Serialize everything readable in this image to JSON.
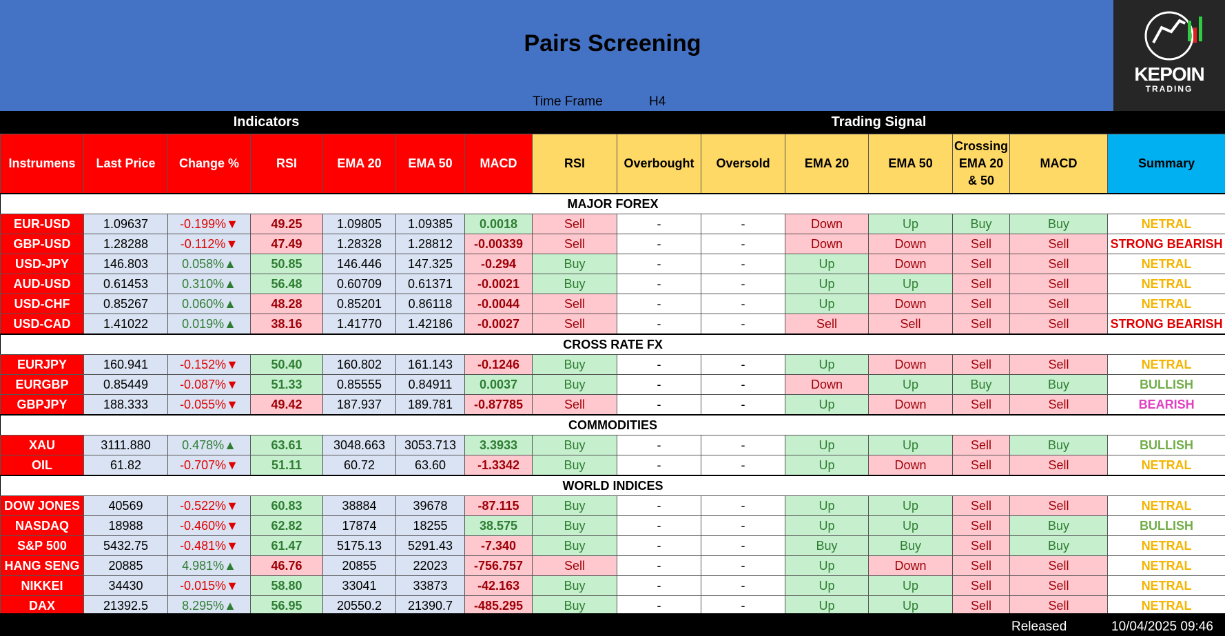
{
  "header": {
    "title": "Pairs Screening",
    "time_frame_label": "Time Frame",
    "time_frame": "H4",
    "logo": {
      "name": "KEPOIN",
      "tagline": "TRADING"
    }
  },
  "table": {
    "group_headers": [
      "Indicators",
      "Trading Signal"
    ],
    "columns": [
      "Instrumens",
      "Last Price",
      "Change %",
      "RSI",
      "EMA 20",
      "EMA 50",
      "MACD",
      "RSI",
      "Overbought",
      "Oversold",
      "EMA 20",
      "EMA 50",
      "Crossing EMA 20 & 50",
      "MACD",
      "Summary"
    ],
    "sections": [
      {
        "title": "MAJOR FOREX",
        "rows": [
          [
            "EUR-USD",
            "1.09637",
            "-0.199%▼",
            "49.25",
            "1.09805",
            "1.09385",
            "0.0018",
            "Sell",
            "-",
            "-",
            "Down",
            "Up",
            "Buy",
            "Buy",
            "NETRAL"
          ],
          [
            "GBP-USD",
            "1.28288",
            "-0.112%▼",
            "47.49",
            "1.28328",
            "1.28812",
            "-0.00339",
            "Sell",
            "-",
            "-",
            "Down",
            "Down",
            "Sell",
            "Sell",
            "STRONG BEARISH"
          ],
          [
            "USD-JPY",
            "146.803",
            "0.058%▲",
            "50.85",
            "146.446",
            "147.325",
            "-0.294",
            "Buy",
            "-",
            "-",
            "Up",
            "Down",
            "Sell",
            "Sell",
            "NETRAL"
          ],
          [
            "AUD-USD",
            "0.61453",
            "0.310%▲",
            "56.48",
            "0.60709",
            "0.61371",
            "-0.0021",
            "Buy",
            "-",
            "-",
            "Up",
            "Up",
            "Sell",
            "Sell",
            "NETRAL"
          ],
          [
            "USD-CHF",
            "0.85267",
            "0.060%▲",
            "48.28",
            "0.85201",
            "0.86118",
            "-0.0044",
            "Sell",
            "-",
            "-",
            "Up",
            "Down",
            "Sell",
            "Sell",
            "NETRAL"
          ],
          [
            "USD-CAD",
            "1.41022",
            "0.019%▲",
            "38.16",
            "1.41770",
            "1.42186",
            "-0.0027",
            "Sell",
            "-",
            "-",
            "Sell",
            "Sell",
            "Sell",
            "Sell",
            "STRONG BEARISH"
          ]
        ]
      },
      {
        "title": "CROSS RATE FX",
        "rows": [
          [
            "EURJPY",
            "160.941",
            "-0.152%▼",
            "50.40",
            "160.802",
            "161.143",
            "-0.1246",
            "Buy",
            "-",
            "-",
            "Up",
            "Down",
            "Sell",
            "Sell",
            "NETRAL"
          ],
          [
            "EURGBP",
            "0.85449",
            "-0.087%▼",
            "51.33",
            "0.85555",
            "0.84911",
            "0.0037",
            "Buy",
            "-",
            "-",
            "Down",
            "Up",
            "Buy",
            "Buy",
            "BULLISH"
          ],
          [
            "GBPJPY",
            "188.333",
            "-0.055%▼",
            "49.42",
            "187.937",
            "189.781",
            "-0.87785",
            "Sell",
            "-",
            "-",
            "Up",
            "Down",
            "Sell",
            "Sell",
            "BEARISH"
          ]
        ]
      },
      {
        "title": "COMMODITIES",
        "rows": [
          [
            "XAU",
            "3111.880",
            "0.478%▲",
            "63.61",
            "3048.663",
            "3053.713",
            "3.3933",
            "Buy",
            "-",
            "-",
            "Up",
            "Up",
            "Sell",
            "Buy",
            "BULLISH"
          ],
          [
            "OIL",
            "61.82",
            "-0.707%▼",
            "51.11",
            "60.72",
            "63.60",
            "-1.3342",
            "Buy",
            "-",
            "-",
            "Up",
            "Down",
            "Sell",
            "Sell",
            "NETRAL"
          ]
        ]
      },
      {
        "title": "WORLD INDICES",
        "rows": [
          [
            "DOW JONES",
            "40569",
            "-0.522%▼",
            "60.83",
            "38884",
            "39678",
            "-87.115",
            "Buy",
            "-",
            "-",
            "Up",
            "Up",
            "Sell",
            "Sell",
            "NETRAL"
          ],
          [
            "NASDAQ",
            "18988",
            "-0.460%▼",
            "62.82",
            "17874",
            "18255",
            "38.575",
            "Buy",
            "-",
            "-",
            "Up",
            "Up",
            "Sell",
            "Buy",
            "BULLISH"
          ],
          [
            "S&P 500",
            "5432.75",
            "-0.481%▼",
            "61.47",
            "5175.13",
            "5291.43",
            "-7.340",
            "Buy",
            "-",
            "-",
            "Buy",
            "Buy",
            "Sell",
            "Buy",
            "NETRAL"
          ],
          [
            "HANG SENG",
            "20885",
            "4.981%▲",
            "46.76",
            "20855",
            "22023",
            "-756.757",
            "Sell",
            "-",
            "-",
            "Up",
            "Down",
            "Sell",
            "Sell",
            "NETRAL"
          ],
          [
            "NIKKEI",
            "34430",
            "-0.015%▼",
            "58.80",
            "33041",
            "33873",
            "-42.163",
            "Buy",
            "-",
            "-",
            "Up",
            "Up",
            "Sell",
            "Sell",
            "NETRAL"
          ],
          [
            "DAX",
            "21392.5",
            "8.295%▲",
            "56.95",
            "20550.2",
            "21390.7",
            "-485.295",
            "Buy",
            "-",
            "-",
            "Up",
            "Up",
            "Sell",
            "Sell",
            "NETRAL"
          ]
        ]
      }
    ]
  },
  "footer": {
    "label": "Released",
    "date": "10/04/2025 09:46"
  }
}
